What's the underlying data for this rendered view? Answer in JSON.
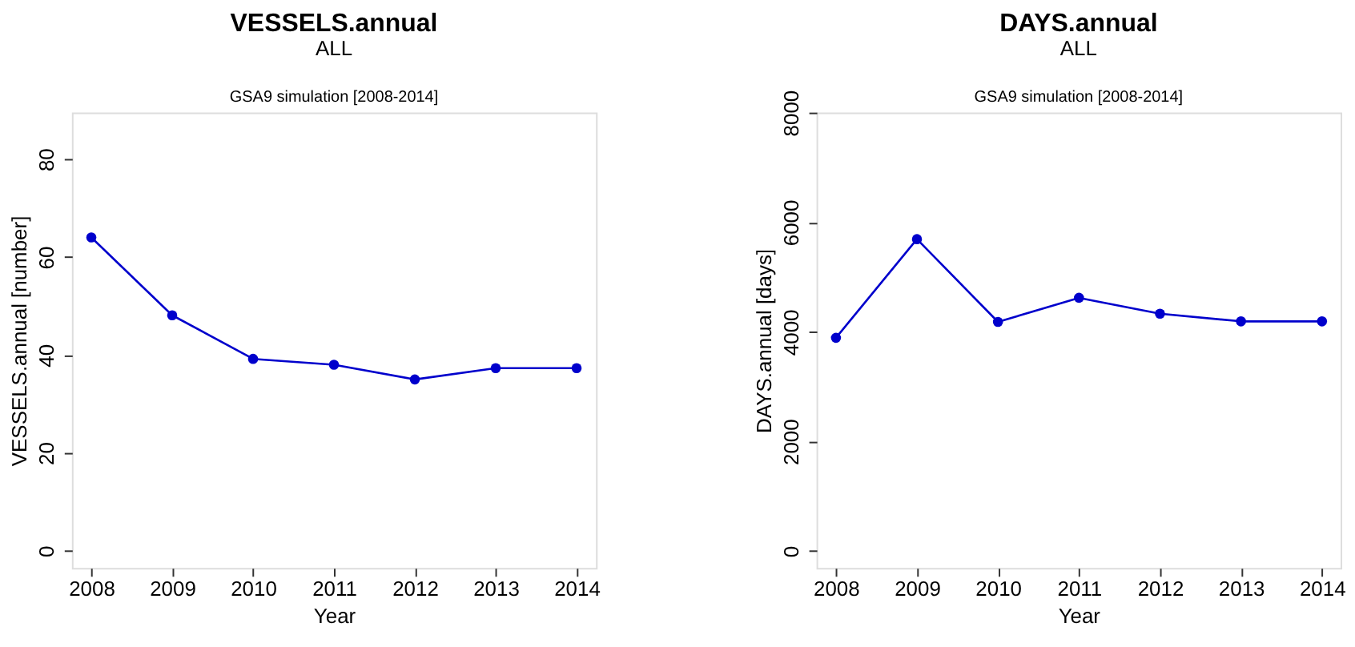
{
  "chart_data": [
    {
      "type": "line",
      "title": "VESSELS.annual",
      "subtitle": "ALL",
      "annotations": [
        "GSA9 simulation [2008-2014]"
      ],
      "xlabel": "Year",
      "ylabel": "VESSELS.annual [number]",
      "x": [
        2008,
        2009,
        2010,
        2011,
        2012,
        2013,
        2014
      ],
      "xlim": [
        2007.76,
        2014.24
      ],
      "xticks": [
        2008,
        2009,
        2010,
        2011,
        2012,
        2013,
        2014
      ],
      "ylim": [
        -3.5,
        89.5
      ],
      "yticks": [
        0,
        20,
        40,
        60,
        80
      ],
      "series": [
        {
          "color": "#0000cc",
          "values": [
            64,
            48.1,
            39.2,
            38.0,
            35.0,
            37.3,
            37.3
          ]
        }
      ],
      "marker": "circle",
      "line_style": "solid",
      "grid": false,
      "legend": false
    },
    {
      "type": "line",
      "title": "DAYS.annual",
      "subtitle": "ALL",
      "annotations": [
        "GSA9 simulation [2008-2014]"
      ],
      "xlabel": "Year",
      "ylabel": "DAYS.annual [days]",
      "x": [
        2008,
        2009,
        2010,
        2011,
        2012,
        2013,
        2014
      ],
      "xlim": [
        2007.76,
        2014.23
      ],
      "xticks": [
        2008,
        2009,
        2010,
        2011,
        2012,
        2013,
        2014
      ],
      "ylim": [
        -310,
        8000
      ],
      "yticks": [
        0,
        2000,
        4000,
        6000,
        8000
      ],
      "series": [
        {
          "color": "#0000cc",
          "values": [
            3890,
            5690,
            4180,
            4620,
            4330,
            4190,
            4190
          ]
        }
      ],
      "marker": "circle",
      "line_style": "solid",
      "grid": false,
      "legend": false
    }
  ]
}
